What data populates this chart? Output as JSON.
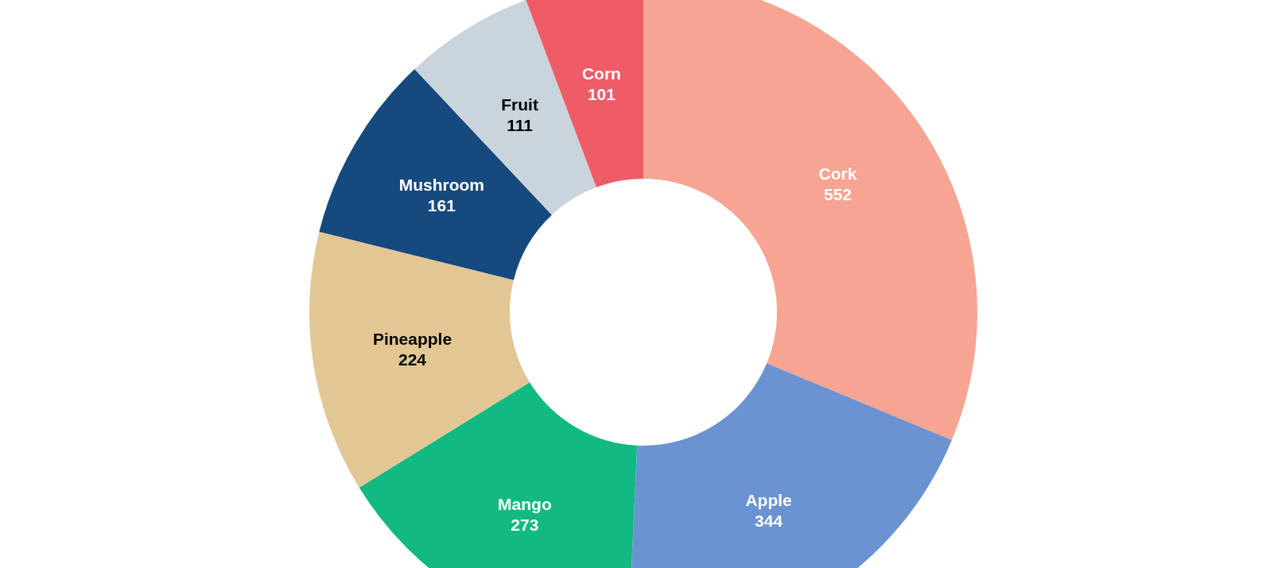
{
  "chart_data": {
    "type": "donut",
    "categories": [
      "Cork",
      "Apple",
      "Mango",
      "Pineapple",
      "Mushroom",
      "Fruit",
      "Corn"
    ],
    "values": [
      552,
      344,
      273,
      224,
      161,
      111,
      101
    ],
    "colors": [
      "#f6a593",
      "#6b93d1",
      "#13b982",
      "#e2c794",
      "#164a7e",
      "#c9d4dc",
      "#ee5c67"
    ],
    "data_labels": true
  }
}
